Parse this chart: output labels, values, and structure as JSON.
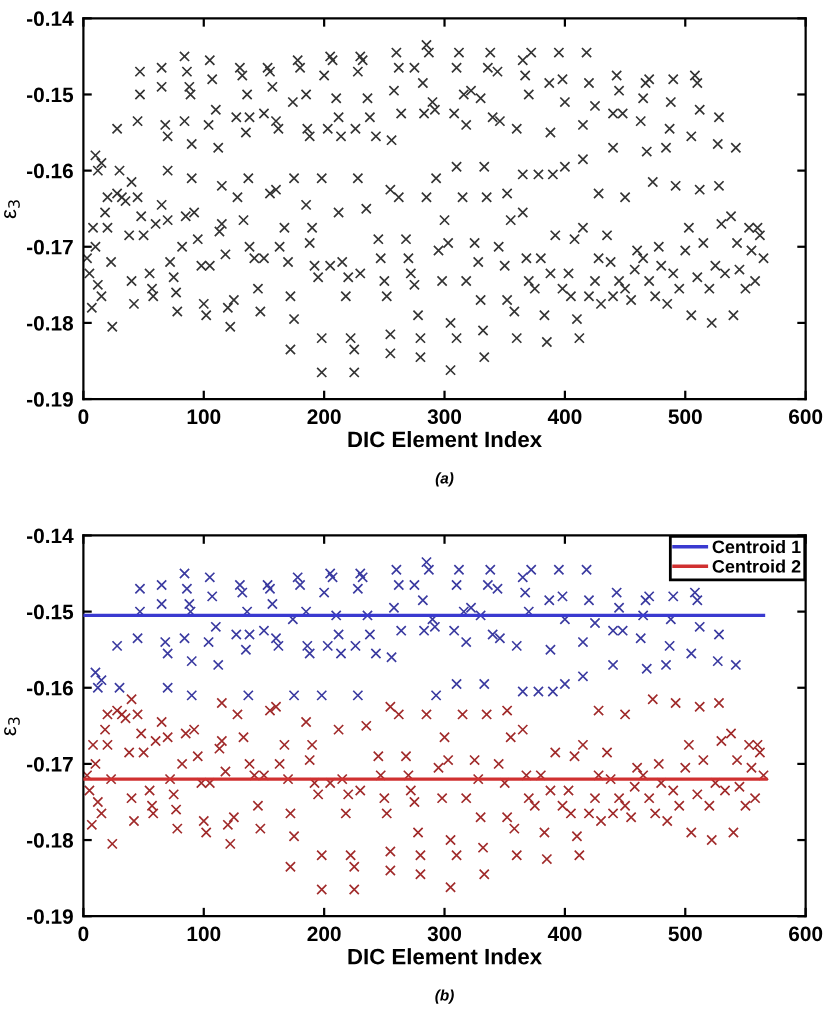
{
  "chart_data": [
    {
      "type": "scatter",
      "xlabel": "DIC Element Index",
      "ylabel": "ε$_{3}$",
      "annotations": [
        "(a)"
      ],
      "xlim": [
        0,
        600
      ],
      "xticks": [
        0,
        100,
        200,
        300,
        400,
        500,
        600
      ],
      "ylim": [
        -0.19,
        -0.14
      ],
      "yticks": [
        -0.19,
        -0.18,
        -0.17,
        -0.16,
        -0.15,
        -0.14
      ],
      "grid": false,
      "legend": false,
      "series": [
        {
          "color": "#333333",
          "marker": "cross",
          "x": [
            10,
            12,
            15,
            28,
            45,
            47,
            47,
            65,
            65,
            68,
            70,
            84,
            86,
            88,
            89,
            90,
            84,
            105,
            107,
            110,
            112,
            104,
            130,
            132,
            136,
            138,
            135,
            127,
            153,
            155,
            157,
            160,
            150,
            162,
            178,
            180,
            185,
            186,
            188,
            174,
            205,
            207,
            200,
            210,
            212,
            214,
            203,
            230,
            232,
            228,
            236,
            238,
            226,
            243,
            260,
            262,
            258,
            264,
            256,
            275,
            285,
            287,
            282,
            290,
            292,
            283,
            312,
            310,
            316,
            318,
            308,
            322,
            338,
            336,
            344,
            340,
            346,
            330,
            365,
            367,
            372,
            370,
            360,
            387,
            395,
            398,
            400,
            388,
            418,
            420,
            425,
            415,
            443,
            445,
            440,
            448,
            440,
            467,
            470,
            465,
            463,
            468,
            490,
            488,
            487,
            484,
            508,
            510,
            505,
            512,
            528,
            527,
            542,
            90,
            137,
            175,
            198,
            228,
            310,
            333,
            365,
            378,
            390,
            400,
            415,
            30,
            70,
            293,
            115,
            255,
            352,
            428,
            450,
            473,
            492,
            512,
            528,
            20,
            40,
            3,
            5,
            7,
            8,
            10,
            12,
            15,
            18,
            20,
            23,
            24,
            28,
            32,
            35,
            38,
            40,
            42,
            45,
            48,
            50,
            55,
            57,
            58,
            60,
            65,
            70,
            72,
            75,
            77,
            78,
            82,
            85,
            92,
            95,
            98,
            100,
            102,
            105,
            113,
            115,
            118,
            120,
            122,
            125,
            128,
            133,
            138,
            142,
            145,
            147,
            150,
            155,
            160,
            163,
            167,
            170,
            172,
            172,
            175,
            185,
            188,
            190,
            192,
            195,
            198,
            198,
            205,
            212,
            215,
            218,
            220,
            222,
            225,
            225,
            230,
            235,
            245,
            247,
            250,
            252,
            255,
            255,
            262,
            268,
            270,
            272,
            275,
            278,
            280,
            280,
            285,
            295,
            298,
            300,
            303,
            305,
            305,
            310,
            315,
            318,
            325,
            328,
            330,
            332,
            333,
            335,
            345,
            350,
            352,
            355,
            358,
            360,
            365,
            368,
            370,
            375,
            380,
            383,
            385,
            388,
            392,
            398,
            403,
            405,
            408,
            410,
            412,
            415,
            420,
            425,
            428,
            430,
            435,
            438,
            440,
            445,
            450,
            455,
            458,
            460,
            465,
            470,
            475,
            478,
            480,
            485,
            490,
            495,
            500,
            503,
            505,
            510,
            515,
            520,
            522,
            525,
            530,
            533,
            538,
            540,
            543,
            545,
            550,
            553,
            555,
            558,
            560,
            562,
            565
          ],
          "values": [
            -0.158,
            -0.16,
            -0.159,
            -0.1545,
            -0.1535,
            -0.147,
            -0.15,
            -0.1465,
            -0.149,
            -0.154,
            -0.1555,
            -0.145,
            -0.147,
            -0.149,
            -0.15,
            -0.1565,
            -0.1535,
            -0.1455,
            -0.148,
            -0.152,
            -0.157,
            -0.154,
            -0.1465,
            -0.1475,
            -0.15,
            -0.153,
            -0.155,
            -0.153,
            -0.1465,
            -0.147,
            -0.149,
            -0.1535,
            -0.1525,
            -0.1545,
            -0.1455,
            -0.1465,
            -0.15,
            -0.1545,
            -0.1555,
            -0.151,
            -0.145,
            -0.1455,
            -0.1475,
            -0.1505,
            -0.153,
            -0.1555,
            -0.1545,
            -0.145,
            -0.1455,
            -0.147,
            -0.1505,
            -0.153,
            -0.1545,
            -0.1555,
            -0.1445,
            -0.1465,
            -0.1495,
            -0.1525,
            -0.156,
            -0.1465,
            -0.1435,
            -0.1445,
            -0.1485,
            -0.151,
            -0.152,
            -0.1525,
            -0.1445,
            -0.1465,
            -0.15,
            -0.154,
            -0.1525,
            -0.1495,
            -0.1445,
            -0.1465,
            -0.147,
            -0.153,
            -0.1535,
            -0.1505,
            -0.1455,
            -0.1475,
            -0.1445,
            -0.15,
            -0.1545,
            -0.1485,
            -0.1445,
            -0.148,
            -0.151,
            -0.155,
            -0.1445,
            -0.1485,
            -0.1515,
            -0.154,
            -0.1475,
            -0.1495,
            -0.1525,
            -0.1525,
            -0.157,
            -0.1485,
            -0.148,
            -0.1505,
            -0.1535,
            -0.1575,
            -0.148,
            -0.151,
            -0.1545,
            -0.157,
            -0.1475,
            -0.1485,
            -0.1555,
            -0.152,
            -0.153,
            -0.1565,
            -0.157,
            -0.161,
            -0.161,
            -0.161,
            -0.161,
            -0.161,
            -0.1595,
            -0.1595,
            -0.1605,
            -0.1605,
            -0.1605,
            -0.1595,
            -0.1585,
            -0.16,
            -0.16,
            -0.161,
            -0.162,
            -0.1625,
            -0.163,
            -0.163,
            -0.1635,
            -0.1615,
            -0.162,
            -0.1625,
            -0.162,
            -0.1635,
            -0.1615,
            -0.1715,
            -0.1735,
            -0.178,
            -0.1675,
            -0.17,
            -0.175,
            -0.1765,
            -0.1655,
            -0.1675,
            -0.172,
            -0.1805,
            -0.163,
            -0.1635,
            -0.164,
            -0.1685,
            -0.1745,
            -0.1775,
            -0.1635,
            -0.166,
            -0.1685,
            -0.1735,
            -0.1755,
            -0.1765,
            -0.167,
            -0.1645,
            -0.1665,
            -0.172,
            -0.174,
            -0.176,
            -0.1785,
            -0.17,
            -0.166,
            -0.1655,
            -0.169,
            -0.1725,
            -0.1775,
            -0.179,
            -0.1725,
            -0.168,
            -0.167,
            -0.171,
            -0.178,
            -0.1805,
            -0.177,
            -0.1635,
            -0.1665,
            -0.17,
            -0.1715,
            -0.1755,
            -0.1785,
            -0.1715,
            -0.163,
            -0.1625,
            -0.17,
            -0.1675,
            -0.172,
            -0.1765,
            -0.1835,
            -0.1795,
            -0.1645,
            -0.1695,
            -0.1675,
            -0.1725,
            -0.174,
            -0.182,
            -0.1865,
            -0.1725,
            -0.1655,
            -0.172,
            -0.1765,
            -0.174,
            -0.182,
            -0.1835,
            -0.1865,
            -0.1735,
            -0.165,
            -0.169,
            -0.1715,
            -0.1745,
            -0.1765,
            -0.1815,
            -0.184,
            -0.1635,
            -0.169,
            -0.1715,
            -0.1735,
            -0.175,
            -0.179,
            -0.182,
            -0.1845,
            -0.1635,
            -0.1705,
            -0.1745,
            -0.1665,
            -0.1695,
            -0.18,
            -0.1862,
            -0.182,
            -0.1635,
            -0.1745,
            -0.1695,
            -0.172,
            -0.177,
            -0.181,
            -0.1845,
            -0.1635,
            -0.17,
            -0.1725,
            -0.177,
            -0.1665,
            -0.1785,
            -0.182,
            -0.1655,
            -0.1715,
            -0.1745,
            -0.1755,
            -0.1715,
            -0.179,
            -0.1825,
            -0.1735,
            -0.1685,
            -0.1755,
            -0.1735,
            -0.1765,
            -0.169,
            -0.1795,
            -0.182,
            -0.1675,
            -0.1765,
            -0.1745,
            -0.1715,
            -0.1775,
            -0.1685,
            -0.172,
            -0.1765,
            -0.1745,
            -0.1755,
            -0.177,
            -0.173,
            -0.1705,
            -0.1715,
            -0.1745,
            -0.1765,
            -0.17,
            -0.1725,
            -0.1775,
            -0.1735,
            -0.1755,
            -0.1705,
            -0.1675,
            -0.179,
            -0.174,
            -0.1695,
            -0.1755,
            -0.18,
            -0.1725,
            -0.167,
            -0.1735,
            -0.166,
            -0.179,
            -0.1695,
            -0.173,
            -0.1755,
            -0.1675,
            -0.1705,
            -0.1745,
            -0.1675,
            -0.1685,
            -0.1715
          ]
        }
      ]
    },
    {
      "type": "scatter",
      "xlabel": "DIC Element Index",
      "ylabel": "ε$_{3}$",
      "annotations": [
        "(b)"
      ],
      "xlim": [
        0,
        600
      ],
      "xticks": [
        0,
        100,
        200,
        300,
        400,
        500,
        600
      ],
      "ylim": [
        -0.19,
        -0.14
      ],
      "yticks": [
        -0.19,
        -0.18,
        -0.17,
        -0.16,
        -0.15,
        -0.14
      ],
      "grid": false,
      "legend": "top right",
      "series": [
        {
          "color": "#3a3aa0",
          "marker": "cross",
          "x": [
            10,
            12,
            15,
            28,
            45,
            47,
            47,
            65,
            65,
            68,
            70,
            84,
            86,
            88,
            89,
            90,
            84,
            105,
            107,
            110,
            112,
            104,
            130,
            132,
            136,
            138,
            135,
            127,
            153,
            155,
            157,
            160,
            150,
            162,
            178,
            180,
            185,
            186,
            188,
            174,
            205,
            207,
            200,
            210,
            212,
            214,
            203,
            230,
            232,
            228,
            236,
            238,
            226,
            243,
            260,
            262,
            258,
            264,
            256,
            275,
            285,
            287,
            282,
            290,
            292,
            283,
            312,
            310,
            316,
            318,
            308,
            322,
            338,
            336,
            344,
            340,
            346,
            330,
            365,
            367,
            372,
            370,
            360,
            387,
            395,
            398,
            400,
            388,
            418,
            420,
            425,
            415,
            443,
            445,
            440,
            448,
            440,
            467,
            470,
            465,
            463,
            468,
            490,
            488,
            487,
            484,
            508,
            510,
            505,
            512,
            528,
            527,
            542,
            90,
            137,
            175,
            198,
            228,
            310,
            333,
            365,
            378,
            390,
            400,
            415,
            30,
            70,
            293
          ],
          "values": [
            -0.158,
            -0.16,
            -0.159,
            -0.1545,
            -0.1535,
            -0.147,
            -0.15,
            -0.1465,
            -0.149,
            -0.154,
            -0.1555,
            -0.145,
            -0.147,
            -0.149,
            -0.15,
            -0.1565,
            -0.1535,
            -0.1455,
            -0.148,
            -0.152,
            -0.157,
            -0.154,
            -0.1465,
            -0.1475,
            -0.15,
            -0.153,
            -0.155,
            -0.153,
            -0.1465,
            -0.147,
            -0.149,
            -0.1535,
            -0.1525,
            -0.1545,
            -0.1455,
            -0.1465,
            -0.15,
            -0.1545,
            -0.1555,
            -0.151,
            -0.145,
            -0.1455,
            -0.1475,
            -0.1505,
            -0.153,
            -0.1555,
            -0.1545,
            -0.145,
            -0.1455,
            -0.147,
            -0.1505,
            -0.153,
            -0.1545,
            -0.1555,
            -0.1445,
            -0.1465,
            -0.1495,
            -0.1525,
            -0.156,
            -0.1465,
            -0.1435,
            -0.1445,
            -0.1485,
            -0.151,
            -0.152,
            -0.1525,
            -0.1445,
            -0.1465,
            -0.15,
            -0.154,
            -0.1525,
            -0.1495,
            -0.1445,
            -0.1465,
            -0.147,
            -0.153,
            -0.1535,
            -0.1505,
            -0.1455,
            -0.1475,
            -0.1445,
            -0.15,
            -0.1545,
            -0.1485,
            -0.1445,
            -0.148,
            -0.151,
            -0.155,
            -0.1445,
            -0.1485,
            -0.1515,
            -0.154,
            -0.1475,
            -0.1495,
            -0.1525,
            -0.1525,
            -0.157,
            -0.1485,
            -0.148,
            -0.1505,
            -0.1535,
            -0.1575,
            -0.148,
            -0.151,
            -0.1545,
            -0.157,
            -0.1475,
            -0.1485,
            -0.1555,
            -0.152,
            -0.153,
            -0.1565,
            -0.157,
            -0.161,
            -0.161,
            -0.161,
            -0.161,
            -0.161,
            -0.1595,
            -0.1595,
            -0.1605,
            -0.1605,
            -0.1605,
            -0.1595,
            -0.1585,
            -0.16,
            -0.16,
            -0.161
          ]
        },
        {
          "color": "#a02a2a",
          "marker": "cross",
          "x": [
            115,
            255,
            352,
            428,
            450,
            473,
            492,
            512,
            528,
            20,
            40,
            3,
            5,
            7,
            8,
            10,
            12,
            15,
            18,
            20,
            23,
            24,
            28,
            32,
            35,
            38,
            40,
            42,
            45,
            48,
            50,
            55,
            57,
            58,
            60,
            65,
            70,
            72,
            75,
            77,
            78,
            82,
            85,
            92,
            95,
            98,
            100,
            102,
            105,
            113,
            115,
            118,
            120,
            122,
            125,
            128,
            133,
            138,
            142,
            145,
            147,
            150,
            155,
            160,
            163,
            167,
            170,
            172,
            172,
            175,
            185,
            188,
            190,
            192,
            195,
            198,
            198,
            205,
            212,
            215,
            218,
            220,
            222,
            225,
            225,
            230,
            235,
            245,
            247,
            250,
            252,
            255,
            255,
            262,
            268,
            270,
            272,
            275,
            278,
            280,
            280,
            285,
            295,
            298,
            300,
            303,
            305,
            305,
            310,
            315,
            318,
            325,
            328,
            330,
            332,
            333,
            335,
            345,
            350,
            352,
            355,
            358,
            360,
            365,
            368,
            370,
            375,
            380,
            383,
            385,
            388,
            392,
            398,
            403,
            405,
            408,
            410,
            412,
            415,
            420,
            425,
            428,
            430,
            435,
            438,
            440,
            445,
            450,
            455,
            458,
            460,
            465,
            470,
            475,
            478,
            480,
            485,
            490,
            495,
            500,
            503,
            505,
            510,
            515,
            520,
            522,
            525,
            530,
            533,
            538,
            540,
            543,
            545,
            550,
            553,
            555,
            558,
            560,
            562,
            565
          ],
          "values": [
            -0.162,
            -0.1625,
            -0.163,
            -0.163,
            -0.1635,
            -0.1615,
            -0.162,
            -0.1625,
            -0.162,
            -0.1635,
            -0.1615,
            -0.1715,
            -0.1735,
            -0.178,
            -0.1675,
            -0.17,
            -0.175,
            -0.1765,
            -0.1655,
            -0.1675,
            -0.172,
            -0.1805,
            -0.163,
            -0.1635,
            -0.164,
            -0.1685,
            -0.1745,
            -0.1775,
            -0.1635,
            -0.166,
            -0.1685,
            -0.1735,
            -0.1755,
            -0.1765,
            -0.167,
            -0.1645,
            -0.1665,
            -0.172,
            -0.174,
            -0.176,
            -0.1785,
            -0.17,
            -0.166,
            -0.1655,
            -0.169,
            -0.1725,
            -0.1775,
            -0.179,
            -0.1725,
            -0.168,
            -0.167,
            -0.171,
            -0.178,
            -0.1805,
            -0.177,
            -0.1635,
            -0.1665,
            -0.17,
            -0.1715,
            -0.1755,
            -0.1785,
            -0.1715,
            -0.163,
            -0.1625,
            -0.17,
            -0.1675,
            -0.172,
            -0.1765,
            -0.1835,
            -0.1795,
            -0.1645,
            -0.1695,
            -0.1675,
            -0.1725,
            -0.174,
            -0.182,
            -0.1865,
            -0.1725,
            -0.1655,
            -0.172,
            -0.1765,
            -0.174,
            -0.182,
            -0.1835,
            -0.1865,
            -0.1735,
            -0.165,
            -0.169,
            -0.1715,
            -0.1745,
            -0.1765,
            -0.1815,
            -0.184,
            -0.1635,
            -0.169,
            -0.1715,
            -0.1735,
            -0.175,
            -0.179,
            -0.182,
            -0.1845,
            -0.1635,
            -0.1705,
            -0.1745,
            -0.1665,
            -0.1695,
            -0.18,
            -0.1862,
            -0.182,
            -0.1635,
            -0.1745,
            -0.1695,
            -0.172,
            -0.177,
            -0.181,
            -0.1845,
            -0.1635,
            -0.17,
            -0.1725,
            -0.177,
            -0.1665,
            -0.1785,
            -0.182,
            -0.1655,
            -0.1715,
            -0.1745,
            -0.1755,
            -0.1715,
            -0.179,
            -0.1825,
            -0.1735,
            -0.1685,
            -0.1755,
            -0.1735,
            -0.1765,
            -0.169,
            -0.1795,
            -0.182,
            -0.1675,
            -0.1765,
            -0.1745,
            -0.1715,
            -0.1775,
            -0.1685,
            -0.172,
            -0.1765,
            -0.1745,
            -0.1755,
            -0.177,
            -0.173,
            -0.1705,
            -0.1715,
            -0.1745,
            -0.1765,
            -0.17,
            -0.1725,
            -0.1775,
            -0.1735,
            -0.1755,
            -0.1705,
            -0.1675,
            -0.179,
            -0.174,
            -0.1695,
            -0.1755,
            -0.18,
            -0.1725,
            -0.167,
            -0.1735,
            -0.166,
            -0.179,
            -0.1695,
            -0.173,
            -0.1755,
            -0.1675,
            -0.1705,
            -0.1745,
            -0.1675,
            -0.1685,
            -0.1715
          ]
        },
        {
          "type": "line",
          "name": "Centroid 1",
          "color": "#3a3ad0",
          "line_style": "solid",
          "x": [
            0,
            565
          ],
          "values": [
            -0.1505,
            -0.1505
          ]
        },
        {
          "type": "line",
          "name": "Centroid 2",
          "color": "#d03030",
          "line_style": "solid",
          "x": [
            0,
            567
          ],
          "values": [
            -0.172,
            -0.172
          ]
        }
      ]
    }
  ]
}
